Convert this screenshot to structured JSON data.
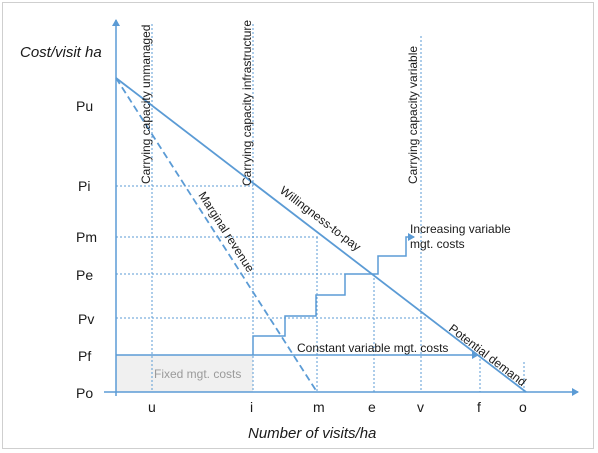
{
  "axes": {
    "y_title": "Cost/visit ha",
    "x_title": "Number of visits/ha",
    "y_ticks": [
      "Pu",
      "Pi",
      "Pm",
      "Pe",
      "Pv",
      "Pf",
      "Po"
    ],
    "x_ticks": [
      "u",
      "i",
      "m",
      "e",
      "v",
      "f",
      "o"
    ]
  },
  "labels": {
    "cc_unmanaged": "Carrying capacity unmanaged",
    "cc_infrastructure": "Carrying capacity infrastructure",
    "cc_variable": "Carrying capacity variable",
    "marginal_revenue": "Marginal revenue",
    "willingness": "Willingness-to-pay",
    "increasing_line1": "Increasing variable",
    "increasing_line2": "mgt. costs",
    "potential_demand": "Potential demand",
    "constant_costs": "Constant variable mgt. costs",
    "fixed_costs": "Fixed mgt. costs"
  },
  "colors": {
    "line": "#5b9bd5",
    "fill": "#f0f0f0"
  }
}
